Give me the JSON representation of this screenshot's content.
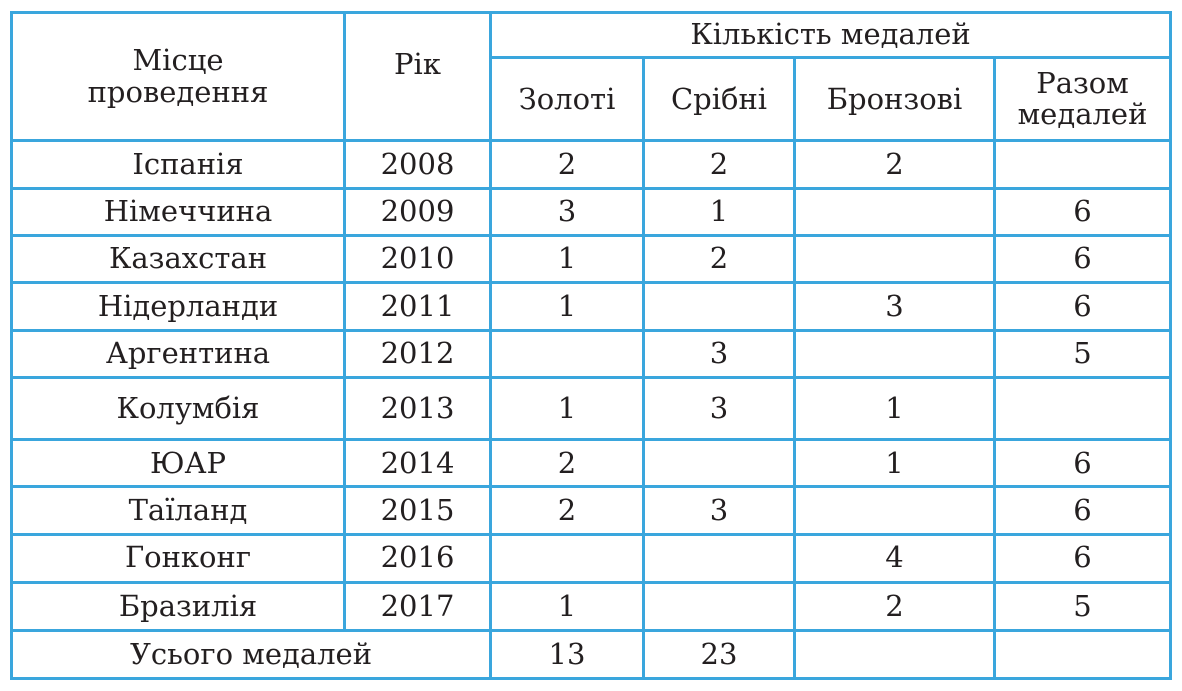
{
  "header": {
    "place_label": "Місце проведення",
    "year_label": "Рік",
    "medal_count_label": "Кількість медалей",
    "gold_label": "Золоті",
    "silver_label": "Срібні",
    "bronze_label": "Бронзові",
    "total_label": "Разом медалей"
  },
  "rows": [
    {
      "place": "Іспанія",
      "year": "2008",
      "gold": "2",
      "silver": "2",
      "bronze": "2",
      "total": ""
    },
    {
      "place": "Німеччина",
      "year": "2009",
      "gold": "3",
      "silver": "1",
      "bronze": "",
      "total": "6"
    },
    {
      "place": "Казахстан",
      "year": "2010",
      "gold": "1",
      "silver": "2",
      "bronze": "",
      "total": "6"
    },
    {
      "place": "Нідерланди",
      "year": "2011",
      "gold": "1",
      "silver": "",
      "bronze": "3",
      "total": "6"
    },
    {
      "place": "Аргентина",
      "year": "2012",
      "gold": "",
      "silver": "3",
      "bronze": "",
      "total": "5"
    },
    {
      "place": "Колумбія",
      "year": "2013",
      "gold": "1",
      "silver": "3",
      "bronze": "1",
      "total": ""
    },
    {
      "place": "ЮАР",
      "year": "2014",
      "gold": "2",
      "silver": "",
      "bronze": "1",
      "total": "6"
    },
    {
      "place": "Таїланд",
      "year": "2015",
      "gold": "2",
      "silver": "3",
      "bronze": "",
      "total": "6"
    },
    {
      "place": "Гонконг",
      "year": "2016",
      "gold": "",
      "silver": "",
      "bronze": "4",
      "total": "6"
    },
    {
      "place": "Бразилія",
      "year": "2017",
      "gold": "1",
      "silver": "",
      "bronze": "2",
      "total": "5"
    }
  ],
  "footer": {
    "label": "Усього медалей",
    "gold": "13",
    "silver": "23",
    "bronze": "",
    "total": ""
  },
  "colors": {
    "border": "#3aa6dd",
    "text": "#231f20"
  }
}
